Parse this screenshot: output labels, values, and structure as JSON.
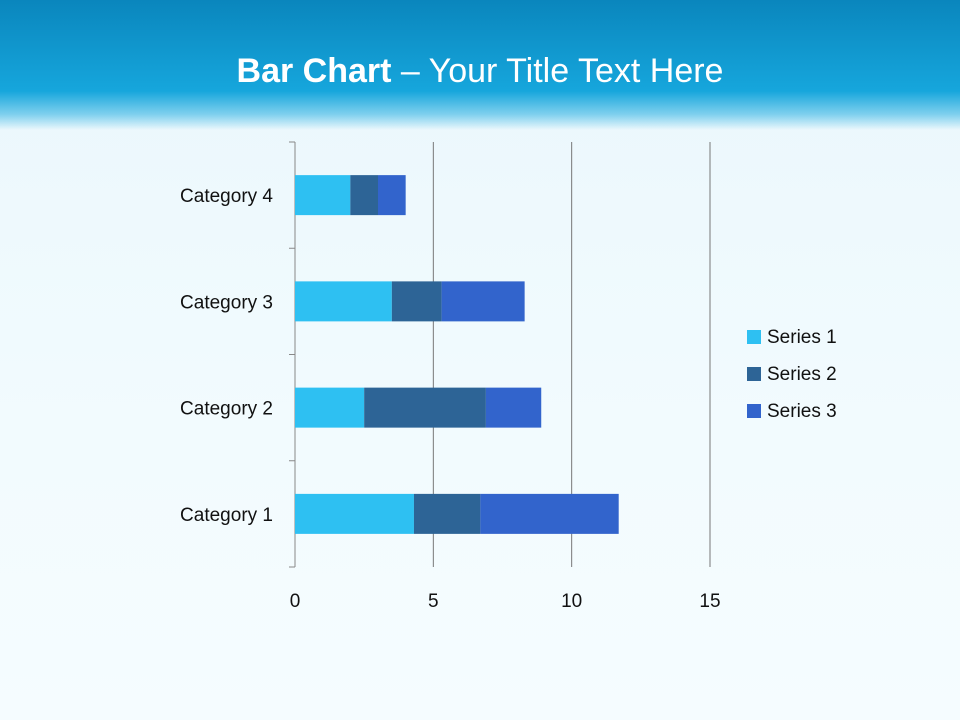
{
  "title": {
    "bold": "Bar Chart",
    "rest": " – Your Title Text Here"
  },
  "chart_data": {
    "type": "bar",
    "orientation": "horizontal",
    "stacked": true,
    "categories": [
      "Category 1",
      "Category 2",
      "Category 3",
      "Category 4"
    ],
    "series": [
      {
        "name": "Series 1",
        "values": [
          4.3,
          2.5,
          3.5,
          2
        ],
        "color": "#2ec0f2"
      },
      {
        "name": "Series 2",
        "values": [
          2.4,
          4.4,
          1.8,
          1
        ],
        "color": "#2d6496"
      },
      {
        "name": "Series 3",
        "values": [
          5,
          2,
          3,
          1
        ],
        "color": "#3264cc"
      }
    ],
    "xlim": [
      0,
      15
    ],
    "xticks": [
      "0",
      "5",
      "10",
      "15"
    ],
    "grid": true,
    "legend": "right"
  }
}
